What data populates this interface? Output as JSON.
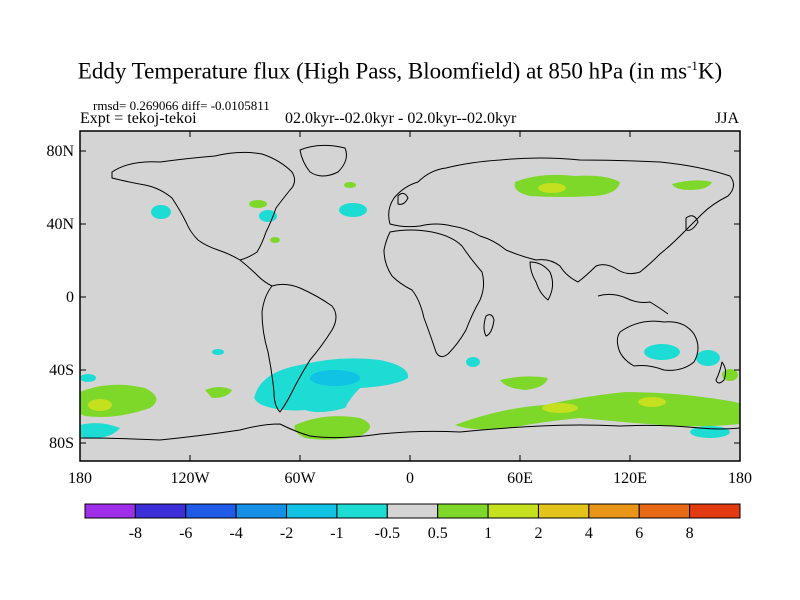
{
  "title": {
    "main": "Eddy Temperature flux (High Pass, Bloomfield) at 850 hPa (in ms",
    "sup": "-1",
    "tail": "K)"
  },
  "stats": "rmsd= 0.269066 diff= -0.0105811",
  "expt": "Expt = tekoj-tekoi",
  "period": "02.0kyr--02.0kyr - 02.0kyr--02.0kyr",
  "season": "JJA",
  "map": {
    "ocean_color": "#d4d4d4",
    "lat_ticks": [
      "80N",
      "40N",
      "0",
      "40S",
      "80S"
    ],
    "lon_ticks": [
      "180",
      "120W",
      "60W",
      "0",
      "60E",
      "120E",
      "180"
    ]
  },
  "colorbar": {
    "labels": [
      "-8",
      "-6",
      "-4",
      "-2",
      "-1",
      "-0.5",
      "0.5",
      "1",
      "2",
      "4",
      "6",
      "8"
    ],
    "colors": [
      "#9f2ee8",
      "#3c2fd9",
      "#1f5ae8",
      "#1590e6",
      "#10c2e3",
      "#1cdcd4",
      "#d4d4d4",
      "#7ed82a",
      "#c4e01e",
      "#e4c41b",
      "#e89518",
      "#e86a16",
      "#e43a12"
    ]
  }
}
